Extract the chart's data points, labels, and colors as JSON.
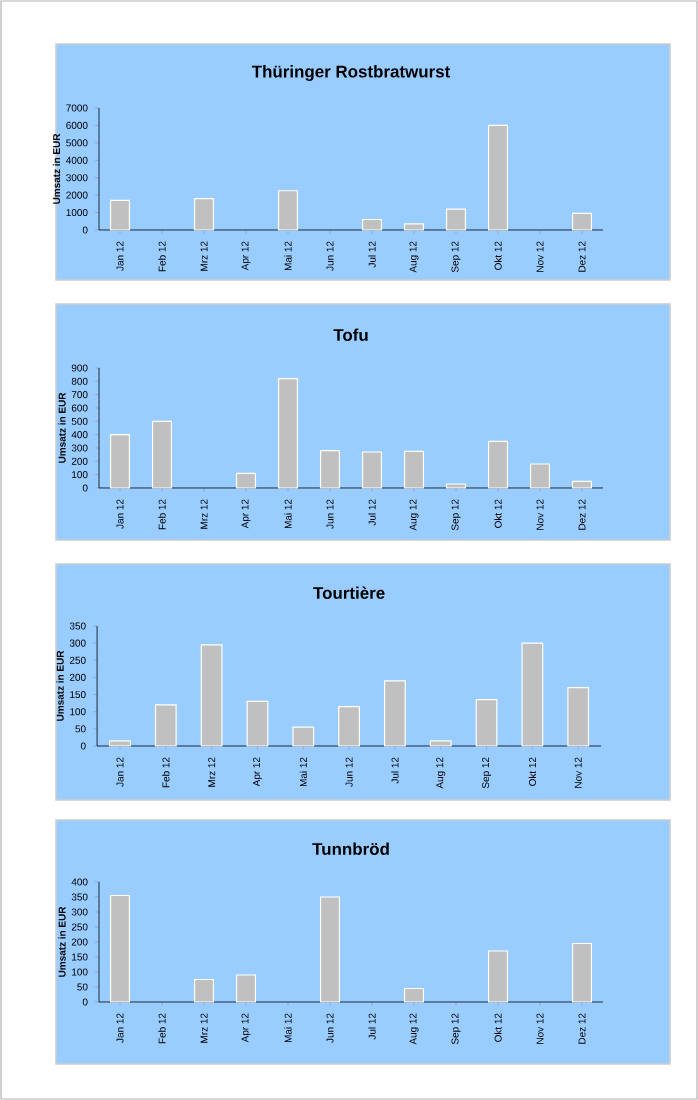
{
  "chart_data": [
    {
      "type": "bar",
      "title": "Thüringer Rostbratwurst",
      "ylabel": "Umsatz in EUR",
      "categories": [
        "Jan 12",
        "Feb 12",
        "Mrz 12",
        "Apr 12",
        "Mai 12",
        "Jun 12",
        "Jul 12",
        "Aug 12",
        "Sep 12",
        "Okt 12",
        "Nov 12",
        "Dez 12"
      ],
      "values": [
        1700,
        null,
        1800,
        null,
        2250,
        null,
        600,
        350,
        1200,
        6000,
        null,
        950
      ],
      "color": "#c0c0c0",
      "ylim": [
        0,
        7000
      ],
      "yticks": [
        0,
        1000,
        2000,
        3000,
        4000,
        5000,
        6000,
        7000
      ]
    },
    {
      "type": "bar",
      "title": "Tofu",
      "ylabel": "Umsatz in EUR",
      "categories": [
        "Jan 12",
        "Feb 12",
        "Mrz 12",
        "Apr 12",
        "Mai 12",
        "Jun 12",
        "Jul 12",
        "Aug 12",
        "Sep 12",
        "Okt 12",
        "Nov 12",
        "Dez 12"
      ],
      "values": [
        400,
        500,
        null,
        110,
        820,
        280,
        270,
        275,
        30,
        350,
        180,
        50
      ],
      "color": "#c0c0c0",
      "ylim": [
        0,
        900
      ],
      "yticks": [
        0,
        100,
        200,
        300,
        400,
        500,
        600,
        700,
        800,
        900
      ]
    },
    {
      "type": "bar",
      "title": "Tourtière",
      "ylabel": "Umsatz in EUR",
      "categories": [
        "Jan 12",
        "Feb 12",
        "Mrz 12",
        "Apr 12",
        "Mai 12",
        "Jun 12",
        "Jul 12",
        "Aug 12",
        "Sep 12",
        "Okt 12",
        "Nov 12"
      ],
      "values": [
        15,
        120,
        295,
        130,
        55,
        115,
        190,
        15,
        135,
        300,
        170
      ],
      "color": "#c0c0c0",
      "ylim": [
        0,
        350
      ],
      "yticks": [
        0,
        50,
        100,
        150,
        200,
        250,
        300,
        350
      ]
    },
    {
      "type": "bar",
      "title": "Tunnbröd",
      "ylabel": "Umsatz in EUR",
      "categories": [
        "Jan 12",
        "Feb 12",
        "Mrz 12",
        "Apr 12",
        "Mai 12",
        "Jun 12",
        "Jul 12",
        "Aug 12",
        "Sep 12",
        "Okt 12",
        "Nov 12",
        "Dez 12"
      ],
      "values": [
        355,
        null,
        75,
        90,
        null,
        350,
        null,
        45,
        null,
        170,
        null,
        195
      ],
      "color": "#c0c0c0",
      "ylim": [
        0,
        400
      ],
      "yticks": [
        0,
        50,
        100,
        150,
        200,
        250,
        300,
        350,
        400
      ]
    }
  ]
}
